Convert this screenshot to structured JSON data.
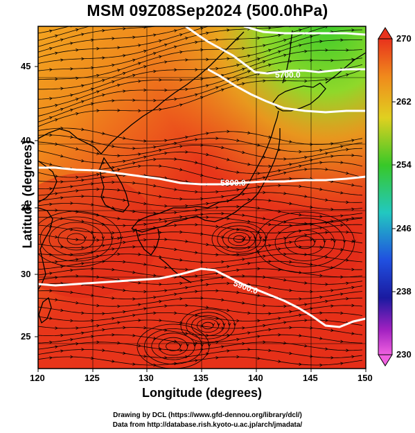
{
  "title": "MSM 09Z08Sep2024 (500.0hPa)",
  "x_axis": {
    "label": "Longitude (degrees)",
    "ticks": [
      "120",
      "125",
      "130",
      "135",
      "140",
      "145",
      "150"
    ]
  },
  "y_axis": {
    "label": "Latitude  (degrees)",
    "ticks": [
      "45",
      "40",
      "35",
      "30",
      "25"
    ]
  },
  "colorbar": {
    "ticks": [
      "270",
      "262",
      "254",
      "246",
      "238",
      "230"
    ]
  },
  "contours": [
    {
      "label": "5700.0"
    },
    {
      "label": "5800.0"
    },
    {
      "label": "5900.0"
    }
  ],
  "credits": {
    "line1": "Drawing by DCL (https://www.gfd-dennou.org/library/dcl/)",
    "line2": "Data from http://database.rish.kyoto-u.ac.jp/arch/jmadata/"
  },
  "colors": {
    "warm": "#e8321c",
    "mid": "#f5a020",
    "cool": "#3fcc2a",
    "contour": "#ffffff",
    "coast": "#000000"
  }
}
